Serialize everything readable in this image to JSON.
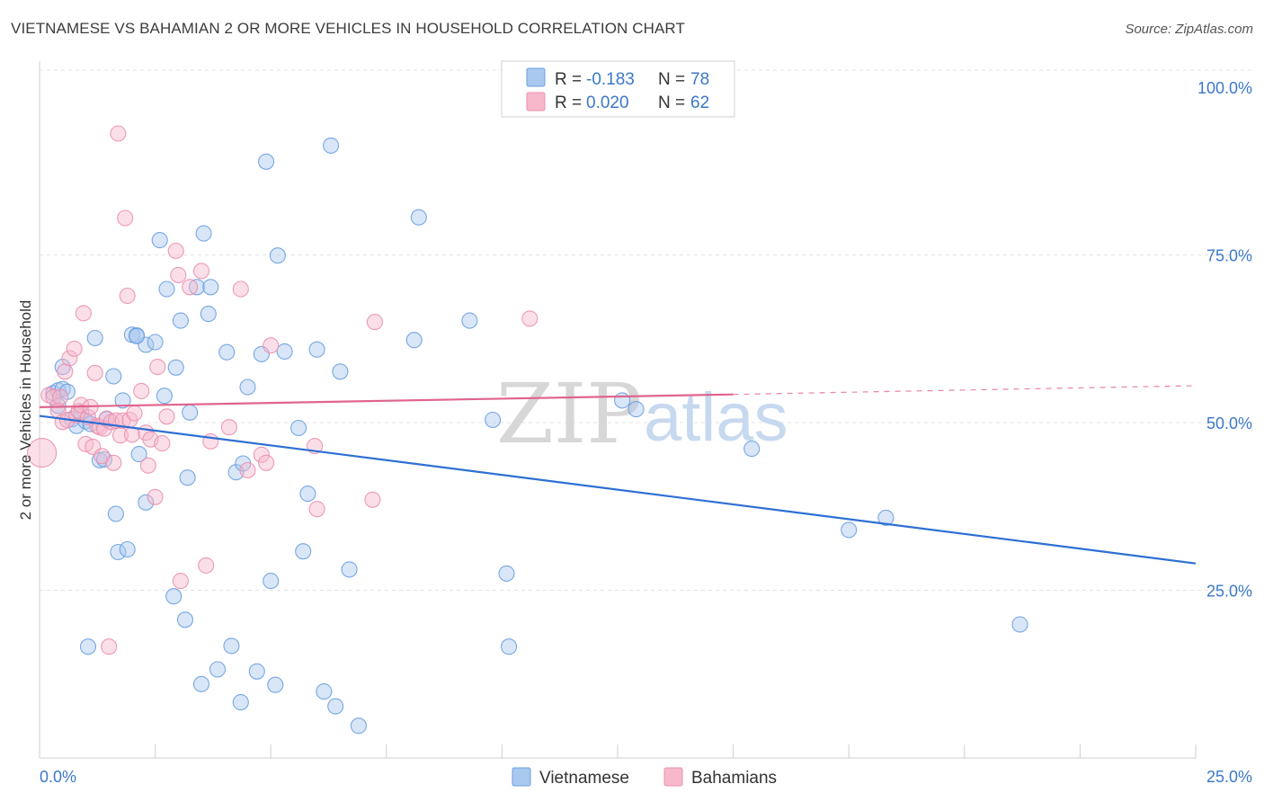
{
  "title": "VIETNAMESE VS BAHAMIAN 2 OR MORE VEHICLES IN HOUSEHOLD CORRELATION CHART",
  "source": "Source: ZipAtlas.com",
  "watermark": {
    "part1": "ZIP",
    "part2": "atlas"
  },
  "legend": {
    "rows": [
      {
        "r_label": "R = ",
        "r_value": "-0.183",
        "n_label": "N = ",
        "n_value": "78",
        "color": "#a9c8f0",
        "stroke": "#6a9fe0"
      },
      {
        "r_label": "R = ",
        "r_value": "0.020",
        "n_label": "N = ",
        "n_value": "62",
        "color": "#f7b8cb",
        "stroke": "#eb8fae"
      }
    ]
  },
  "bottom_legend": [
    {
      "label": "Vietnamese",
      "color": "#a9c8f0",
      "stroke": "#6a9fe0"
    },
    {
      "label": "Bahamians",
      "color": "#f7b8cb",
      "stroke": "#eb8fae"
    }
  ],
  "chart_data": {
    "type": "scatter",
    "xlabel": "",
    "ylabel": "2 or more Vehicles in Household",
    "xlim": [
      0,
      25
    ],
    "ylim": [
      0,
      100
    ],
    "x_tick_labels": {
      "left": "0.0%",
      "right": "25.0%"
    },
    "y_ticks": [
      {
        "value": 100,
        "label": "100.0%"
      },
      {
        "value": 75,
        "label": "75.0%"
      },
      {
        "value": 50,
        "label": "50.0%"
      },
      {
        "value": 25,
        "label": "25.0%"
      }
    ],
    "grid": true,
    "series": [
      {
        "name": "Vietnamese",
        "color": "#6a9fe0",
        "fill": "#a9c8f0",
        "trend": {
          "x": [
            0,
            25
          ],
          "y": [
            51.0,
            29.0
          ],
          "color": "#2d6fd4"
        },
        "points": [
          [
            0.3,
            54.4
          ],
          [
            0.4,
            54.8
          ],
          [
            0.5,
            55.0
          ],
          [
            0.4,
            52.5
          ],
          [
            0.5,
            58.3
          ],
          [
            0.6,
            54.6
          ],
          [
            0.7,
            50.5
          ],
          [
            0.8,
            49.5
          ],
          [
            0.9,
            51.5
          ],
          [
            1.0,
            50.2
          ],
          [
            1.1,
            49.8
          ],
          [
            1.2,
            62.6
          ],
          [
            1.3,
            44.4
          ],
          [
            1.4,
            44.5
          ],
          [
            1.45,
            50.5
          ],
          [
            1.6,
            56.9
          ],
          [
            1.65,
            36.4
          ],
          [
            1.7,
            30.7
          ],
          [
            1.9,
            31.1
          ],
          [
            1.8,
            53.3
          ],
          [
            2.0,
            63.1
          ],
          [
            2.1,
            63.0
          ],
          [
            2.15,
            45.3
          ],
          [
            2.3,
            61.6
          ],
          [
            2.3,
            38.1
          ],
          [
            2.5,
            62.0
          ],
          [
            2.6,
            77.2
          ],
          [
            2.7,
            54.0
          ],
          [
            2.75,
            69.9
          ],
          [
            2.9,
            24.1
          ],
          [
            2.95,
            58.2
          ],
          [
            3.05,
            65.2
          ],
          [
            3.15,
            20.6
          ],
          [
            3.2,
            41.8
          ],
          [
            3.25,
            51.5
          ],
          [
            3.4,
            70.2
          ],
          [
            3.5,
            11.0
          ],
          [
            3.55,
            78.2
          ],
          [
            3.65,
            66.2
          ],
          [
            3.7,
            70.2
          ],
          [
            3.85,
            13.2
          ],
          [
            4.05,
            60.5
          ],
          [
            4.15,
            16.7
          ],
          [
            4.25,
            42.6
          ],
          [
            4.35,
            8.3
          ],
          [
            4.4,
            43.9
          ],
          [
            4.5,
            55.3
          ],
          [
            4.7,
            12.9
          ],
          [
            4.8,
            60.2
          ],
          [
            4.9,
            88.9
          ],
          [
            5.0,
            26.4
          ],
          [
            5.1,
            10.9
          ],
          [
            5.15,
            74.9
          ],
          [
            5.3,
            60.6
          ],
          [
            5.6,
            49.2
          ],
          [
            5.7,
            30.8
          ],
          [
            5.8,
            39.4
          ],
          [
            6.0,
            60.9
          ],
          [
            6.15,
            9.9
          ],
          [
            6.3,
            91.3
          ],
          [
            6.4,
            7.7
          ],
          [
            6.5,
            57.6
          ],
          [
            6.7,
            28.1
          ],
          [
            6.9,
            4.8
          ],
          [
            8.1,
            62.3
          ],
          [
            8.2,
            80.6
          ],
          [
            9.3,
            65.2
          ],
          [
            9.8,
            50.4
          ],
          [
            10.1,
            27.5
          ],
          [
            10.15,
            16.6
          ],
          [
            12.6,
            53.3
          ],
          [
            12.9,
            52.0
          ],
          [
            15.4,
            46.1
          ],
          [
            17.5,
            34.0
          ],
          [
            18.3,
            35.8
          ],
          [
            21.2,
            19.9
          ],
          [
            1.05,
            16.6
          ],
          [
            2.1,
            62.9
          ]
        ]
      },
      {
        "name": "Bahamians",
        "color": "#eb8fae",
        "fill": "#f7b8cb",
        "trend": {
          "x": [
            0,
            15
          ],
          "y": [
            52.3,
            54.2
          ],
          "color": "#e0648e"
        },
        "trend_dashed": {
          "x": [
            15,
            25
          ],
          "y": [
            54.2,
            55.5
          ]
        },
        "points": [
          [
            0.05,
            45.5
          ],
          [
            0.2,
            54.1
          ],
          [
            0.3,
            53.8
          ],
          [
            0.4,
            51.8
          ],
          [
            0.45,
            53.8
          ],
          [
            0.5,
            50.1
          ],
          [
            0.55,
            57.6
          ],
          [
            0.6,
            50.4
          ],
          [
            0.65,
            59.6
          ],
          [
            0.75,
            61.0
          ],
          [
            0.8,
            51.1
          ],
          [
            0.85,
            51.7
          ],
          [
            0.9,
            52.6
          ],
          [
            0.95,
            66.3
          ],
          [
            1.0,
            46.8
          ],
          [
            1.05,
            50.8
          ],
          [
            1.1,
            52.3
          ],
          [
            1.15,
            46.4
          ],
          [
            1.2,
            57.4
          ],
          [
            1.25,
            49.5
          ],
          [
            1.3,
            49.3
          ],
          [
            1.35,
            45.0
          ],
          [
            1.4,
            49.1
          ],
          [
            1.45,
            50.6
          ],
          [
            1.5,
            16.6
          ],
          [
            1.55,
            50.1
          ],
          [
            1.6,
            44.0
          ],
          [
            1.65,
            50.3
          ],
          [
            1.7,
            93.1
          ],
          [
            1.75,
            48.1
          ],
          [
            1.8,
            50.3
          ],
          [
            1.85,
            80.5
          ],
          [
            1.9,
            68.9
          ],
          [
            1.95,
            50.4
          ],
          [
            2.0,
            48.2
          ],
          [
            2.05,
            51.4
          ],
          [
            2.2,
            54.7
          ],
          [
            2.3,
            48.5
          ],
          [
            2.35,
            43.6
          ],
          [
            2.4,
            47.5
          ],
          [
            2.5,
            38.9
          ],
          [
            2.55,
            58.3
          ],
          [
            2.65,
            46.9
          ],
          [
            2.75,
            50.9
          ],
          [
            2.95,
            75.6
          ],
          [
            3.0,
            72.0
          ],
          [
            3.05,
            26.4
          ],
          [
            3.25,
            70.2
          ],
          [
            3.5,
            72.6
          ],
          [
            3.6,
            28.7
          ],
          [
            3.7,
            47.2
          ],
          [
            4.1,
            49.3
          ],
          [
            4.35,
            69.9
          ],
          [
            4.5,
            42.9
          ],
          [
            4.8,
            45.2
          ],
          [
            4.9,
            44.0
          ],
          [
            5.0,
            61.5
          ],
          [
            5.95,
            46.5
          ],
          [
            6.0,
            37.1
          ],
          [
            7.25,
            65.0
          ],
          [
            7.2,
            38.5
          ],
          [
            10.6,
            65.5
          ]
        ]
      }
    ]
  }
}
